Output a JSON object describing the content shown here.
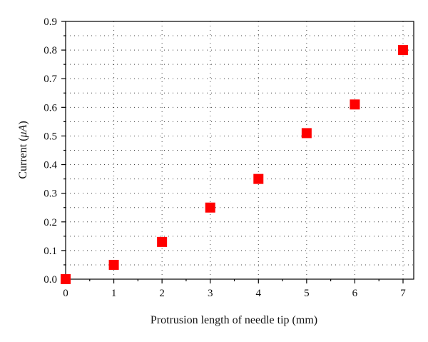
{
  "chart_data": {
    "type": "scatter",
    "title": "",
    "xlabel": "Protrusion length of needle tip (mm)",
    "ylabel_parts": [
      "Current (",
      "μA",
      ")"
    ],
    "xlim": [
      0,
      7
    ],
    "ylim": [
      0,
      0.9
    ],
    "x_ticks": [
      0,
      1,
      2,
      3,
      4,
      5,
      6,
      7
    ],
    "x_tick_labels": [
      "0",
      "1",
      "2",
      "3",
      "4",
      "5",
      "6",
      "7"
    ],
    "y_ticks": [
      0.0,
      0.1,
      0.2,
      0.3,
      0.4,
      0.5,
      0.6,
      0.7,
      0.8,
      0.9
    ],
    "y_tick_labels": [
      "0.0",
      "0.1",
      "0.2",
      "0.3",
      "0.4",
      "0.5",
      "0.6",
      "0.7",
      "0.8",
      "0.9"
    ],
    "grid": true,
    "marker_color": "#ff0000",
    "x": [
      0,
      1,
      2,
      3,
      4,
      5,
      6,
      7
    ],
    "y": [
      0.0,
      0.05,
      0.13,
      0.25,
      0.35,
      0.51,
      0.61,
      0.8
    ]
  }
}
